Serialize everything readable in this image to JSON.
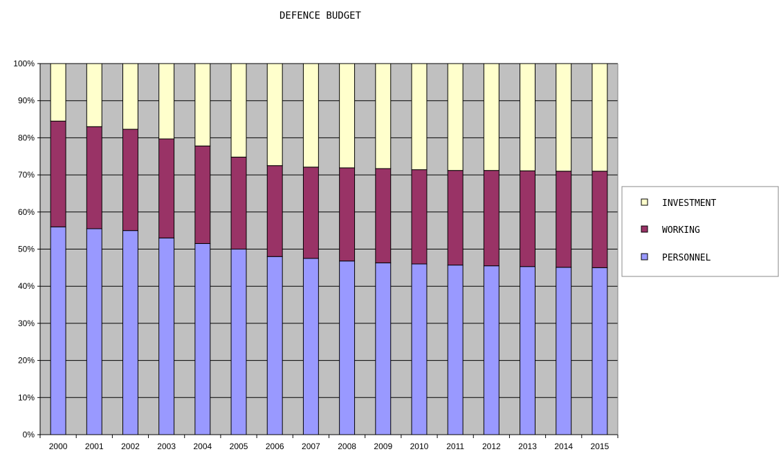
{
  "chart_data": {
    "type": "bar",
    "stacking": "percent",
    "title": "DEFENCE BUDGET",
    "xlabel": "",
    "ylabel": "",
    "ylim": [
      0,
      100
    ],
    "y_ticks": [
      "0%",
      "10%",
      "20%",
      "30%",
      "40%",
      "50%",
      "60%",
      "70%",
      "80%",
      "90%",
      "100%"
    ],
    "grid": true,
    "legend_position": "right",
    "categories": [
      "2000",
      "2001",
      "2002",
      "2003",
      "2004",
      "2005",
      "2006",
      "2007",
      "2008",
      "2009",
      "2010",
      "2011",
      "2012",
      "2013",
      "2014",
      "2015"
    ],
    "series": [
      {
        "name": "PERSONNEL",
        "color": "#9999ff",
        "values": [
          56,
          55.5,
          55,
          53,
          51.5,
          50,
          48,
          47.5,
          46.8,
          46.3,
          46,
          45.7,
          45.5,
          45.3,
          45.1,
          45
        ]
      },
      {
        "name": "WORKING",
        "color": "#993366",
        "values": [
          28.5,
          27.5,
          27.3,
          26.7,
          26.3,
          24.8,
          24.5,
          24.6,
          25.1,
          25.4,
          25.4,
          25.5,
          25.7,
          25.8,
          25.9,
          26
        ]
      },
      {
        "name": "INVESTMENT",
        "color": "#ffffcc",
        "values": [
          15.5,
          17,
          17.7,
          20.3,
          22.2,
          25.2,
          27.5,
          27.9,
          28.1,
          28.3,
          28.6,
          28.8,
          28.8,
          28.9,
          29,
          29
        ]
      }
    ],
    "legend_order": [
      "INVESTMENT",
      "WORKING",
      "PERSONNEL"
    ],
    "plot_background": "#c0c0c0"
  }
}
